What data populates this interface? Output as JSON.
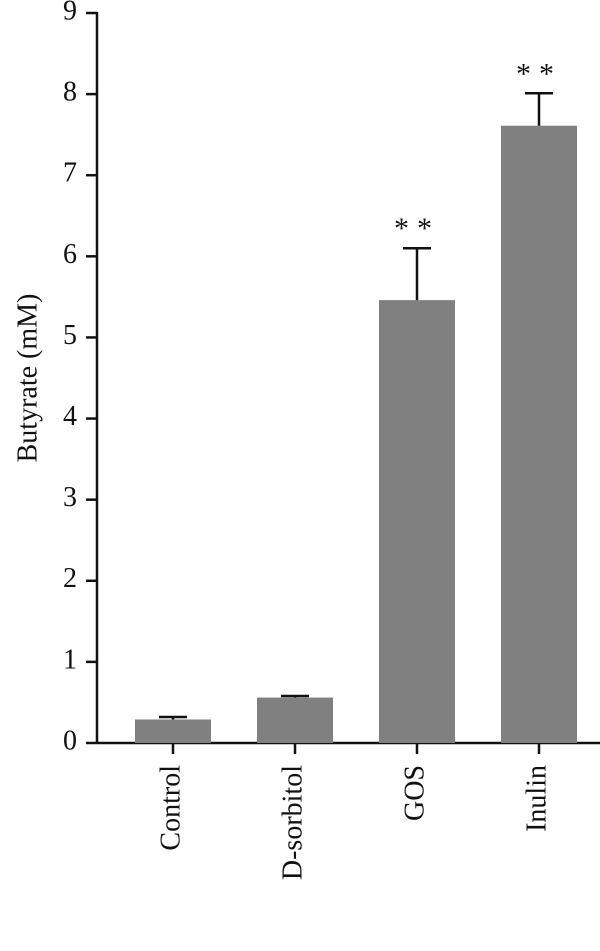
{
  "chart_data": {
    "type": "bar",
    "y_label": "Butyrate (mM)",
    "categories": [
      "Control",
      "D-sorbitol",
      "GOS",
      "Inulin"
    ],
    "values": [
      0.29,
      0.56,
      5.46,
      7.61
    ],
    "errors": [
      0.03,
      0.02,
      0.64,
      0.4
    ],
    "annotations": [
      null,
      null,
      "**",
      "**"
    ],
    "color": "#808080",
    "ylim": [
      0,
      9
    ],
    "yticks": [
      0,
      1,
      2,
      3,
      4,
      5,
      6,
      7,
      8,
      9
    ],
    "grid": false
  }
}
